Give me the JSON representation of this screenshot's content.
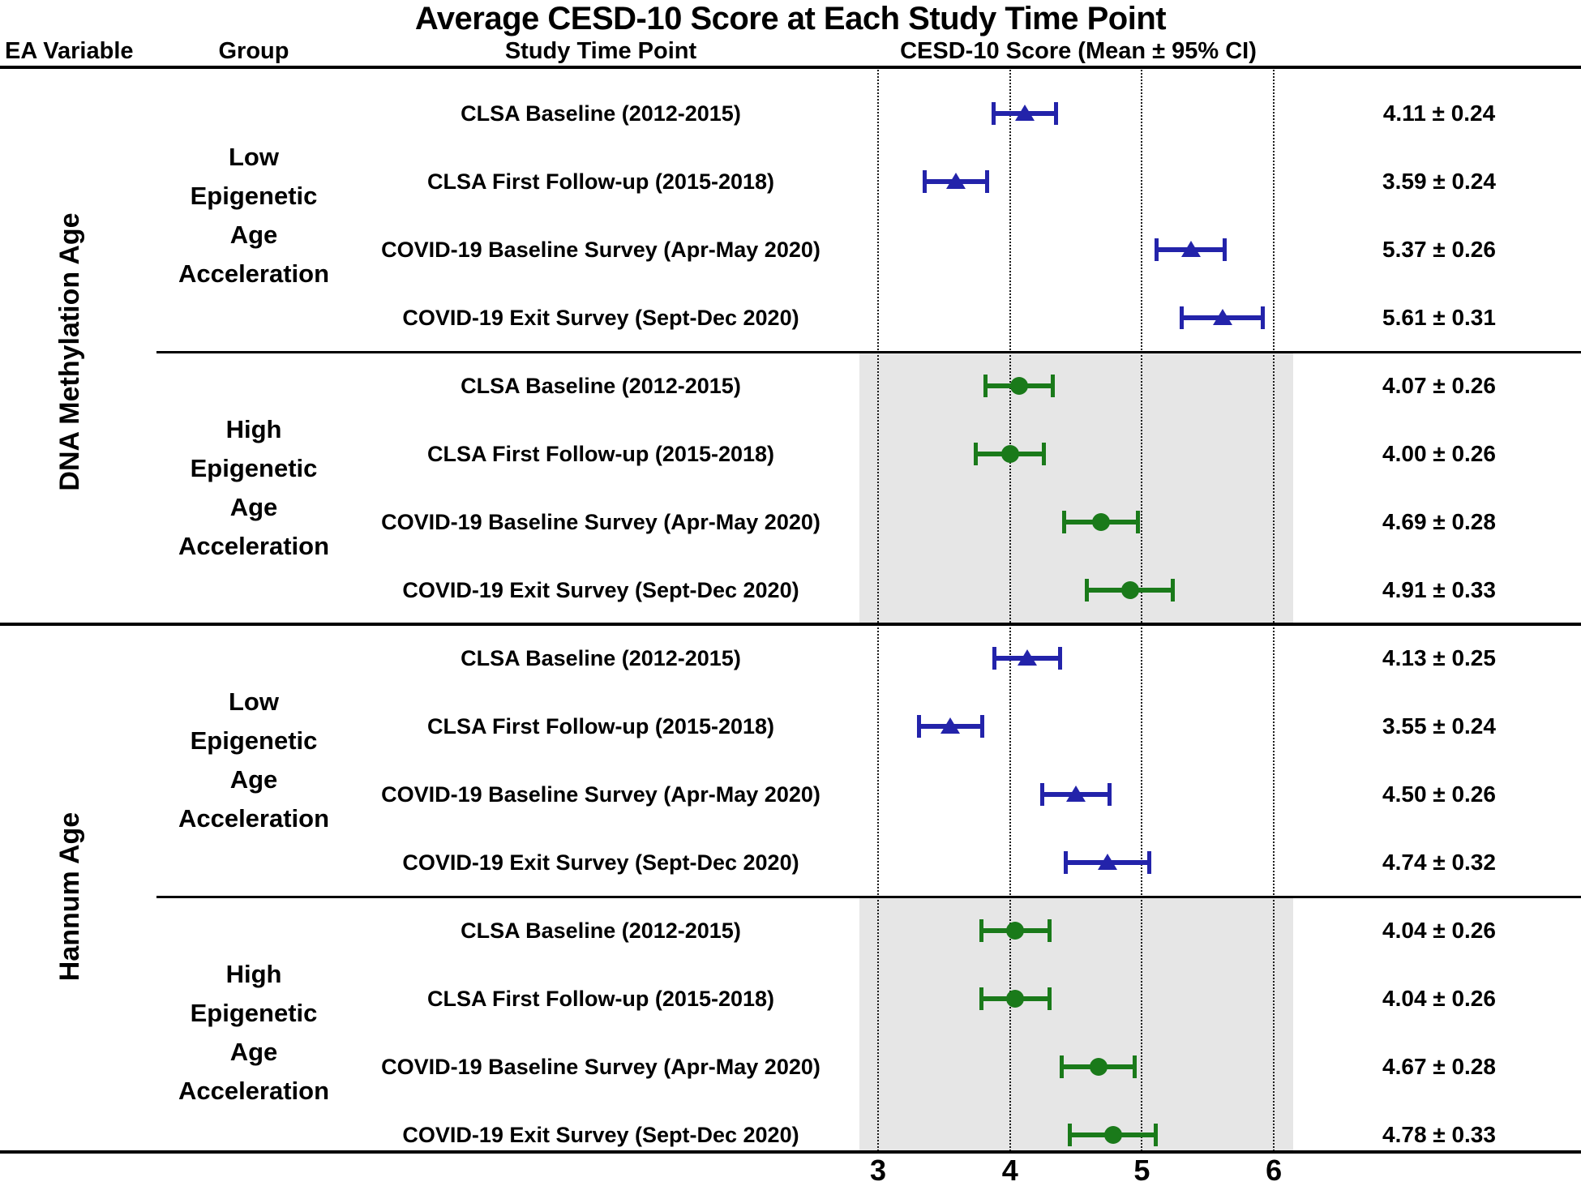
{
  "figure": {
    "title": "Average CESD-10 Score at Each Study Time Point"
  },
  "columns": {
    "ea_variable": "EA Variable",
    "group": "Group",
    "time_point": "Study Time Point",
    "score": "CESD-10 Score (Mean ± 95% CI)"
  },
  "chart_data": {
    "type": "forest",
    "title": "Average CESD-10 Score at Each Study Time Point",
    "xlabel": "CESD-10 Score (Mean ± 95% CI)",
    "x_ticks": [
      "3",
      "4",
      "5",
      "6"
    ],
    "xlim_displayed": [
      2.86,
      6.17
    ],
    "grid": "dotted-vertical-at-ticks",
    "colors": {
      "low_marker": "#2323aa",
      "high_marker": "#1a7a1a",
      "shaded_band": "#e6e6e6"
    },
    "sections": [
      {
        "ea_variable": "DNA Methylation Age",
        "groups": [
          {
            "name": "Low Epigenetic Age Acceleration",
            "name_lines": [
              "Low",
              "Epigenetic",
              "Age",
              "Acceleration"
            ],
            "marker": "triangle",
            "color_key": "low_marker",
            "shaded": false,
            "rows": [
              {
                "time_point": "CLSA Baseline (2012-2015)",
                "mean": 4.11,
                "ci": 0.24,
                "value_text": "4.11 ± 0.24"
              },
              {
                "time_point": "CLSA First Follow-up (2015-2018)",
                "mean": 3.59,
                "ci": 0.24,
                "value_text": "3.59 ± 0.24"
              },
              {
                "time_point": "COVID-19 Baseline Survey (Apr-May 2020)",
                "mean": 5.37,
                "ci": 0.26,
                "value_text": "5.37 ± 0.26"
              },
              {
                "time_point": "COVID-19 Exit Survey (Sept-Dec 2020)",
                "mean": 5.61,
                "ci": 0.31,
                "value_text": "5.61 ± 0.31"
              }
            ]
          },
          {
            "name": "High Epigenetic Age Acceleration",
            "name_lines": [
              "High",
              "Epigenetic",
              "Age",
              "Acceleration"
            ],
            "marker": "circle",
            "color_key": "high_marker",
            "shaded": true,
            "rows": [
              {
                "time_point": "CLSA Baseline (2012-2015)",
                "mean": 4.07,
                "ci": 0.26,
                "value_text": "4.07 ± 0.26"
              },
              {
                "time_point": "CLSA First Follow-up (2015-2018)",
                "mean": 4.0,
                "ci": 0.26,
                "value_text": "4.00 ± 0.26"
              },
              {
                "time_point": "COVID-19 Baseline Survey (Apr-May 2020)",
                "mean": 4.69,
                "ci": 0.28,
                "value_text": "4.69 ± 0.28"
              },
              {
                "time_point": "COVID-19 Exit Survey (Sept-Dec 2020)",
                "mean": 4.91,
                "ci": 0.33,
                "value_text": "4.91 ± 0.33"
              }
            ]
          }
        ]
      },
      {
        "ea_variable": "Hannum Age",
        "groups": [
          {
            "name": "Low Epigenetic Age Acceleration",
            "name_lines": [
              "Low",
              "Epigenetic",
              "Age",
              "Acceleration"
            ],
            "marker": "triangle",
            "color_key": "low_marker",
            "shaded": false,
            "rows": [
              {
                "time_point": "CLSA Baseline (2012-2015)",
                "mean": 4.13,
                "ci": 0.25,
                "value_text": "4.13 ± 0.25"
              },
              {
                "time_point": "CLSA First Follow-up (2015-2018)",
                "mean": 3.55,
                "ci": 0.24,
                "value_text": "3.55 ± 0.24"
              },
              {
                "time_point": "COVID-19 Baseline Survey (Apr-May 2020)",
                "mean": 4.5,
                "ci": 0.26,
                "value_text": "4.50 ± 0.26"
              },
              {
                "time_point": "COVID-19 Exit Survey (Sept-Dec 2020)",
                "mean": 4.74,
                "ci": 0.32,
                "value_text": "4.74 ± 0.32"
              }
            ]
          },
          {
            "name": "High Epigenetic Age Acceleration",
            "name_lines": [
              "High",
              "Epigenetic",
              "Age",
              "Acceleration"
            ],
            "marker": "circle",
            "color_key": "high_marker",
            "shaded": true,
            "rows": [
              {
                "time_point": "CLSA Baseline (2012-2015)",
                "mean": 4.04,
                "ci": 0.26,
                "value_text": "4.04 ± 0.26"
              },
              {
                "time_point": "CLSA First Follow-up (2015-2018)",
                "mean": 4.04,
                "ci": 0.26,
                "value_text": "4.04 ± 0.26"
              },
              {
                "time_point": "COVID-19 Baseline Survey (Apr-May 2020)",
                "mean": 4.67,
                "ci": 0.28,
                "value_text": "4.67 ± 0.28"
              },
              {
                "time_point": "COVID-19 Exit Survey (Sept-Dec 2020)",
                "mean": 4.78,
                "ci": 0.33,
                "value_text": "4.78 ± 0.33"
              }
            ]
          }
        ]
      }
    ]
  }
}
